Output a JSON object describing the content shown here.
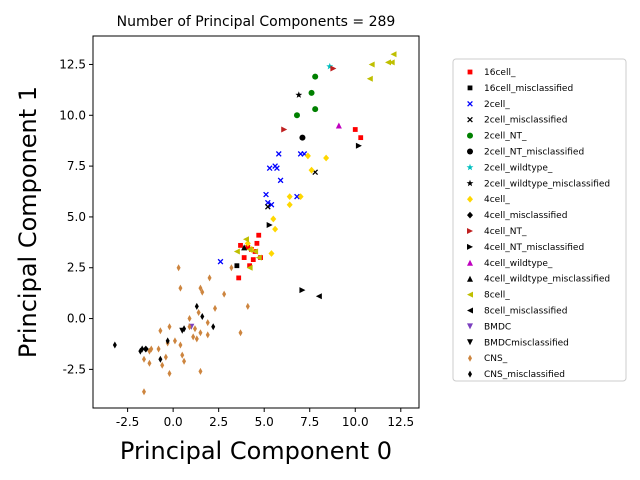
{
  "chart_data": {
    "type": "scatter",
    "title": "Number of Principal Components = 289",
    "xlabel": "Principal Component 0",
    "ylabel": "Principal Component 1",
    "xlim": [
      -4.4,
      13.5
    ],
    "ylim": [
      -4.4,
      13.9
    ],
    "xticks": [
      "-2.5",
      "0.0",
      "2.5",
      "5.0",
      "7.5",
      "10.0",
      "12.5"
    ],
    "xtick_values": [
      -2.5,
      0,
      2.5,
      5,
      7.5,
      10,
      12.5
    ],
    "yticks": [
      "-2.5",
      "0.0",
      "2.5",
      "5.0",
      "7.5",
      "10.0",
      "12.5"
    ],
    "ytick_values": [
      -2.5,
      0,
      2.5,
      5,
      7.5,
      10,
      12.5
    ],
    "legend_position": "right, outside plot",
    "series": [
      {
        "name": "16cell_",
        "color": "#ff0000",
        "marker": "square",
        "points": [
          [
            10.0,
            9.3
          ],
          [
            10.3,
            8.9
          ],
          [
            3.7,
            3.6
          ],
          [
            3.9,
            3.0
          ],
          [
            4.1,
            3.5
          ],
          [
            4.3,
            3.4
          ],
          [
            4.4,
            2.9
          ],
          [
            4.5,
            3.3
          ],
          [
            4.6,
            3.7
          ],
          [
            4.7,
            4.1
          ],
          [
            4.8,
            3.0
          ],
          [
            3.6,
            2.0
          ],
          [
            4.2,
            2.6
          ]
        ]
      },
      {
        "name": "16cell_misclassified",
        "color": "#000000",
        "marker": "square",
        "points": [
          [
            3.5,
            2.6
          ]
        ]
      },
      {
        "name": "2cell_",
        "color": "#0000ff",
        "marker": "x",
        "points": [
          [
            5.1,
            6.1
          ],
          [
            5.2,
            5.7
          ],
          [
            5.4,
            5.6
          ],
          [
            5.3,
            7.4
          ],
          [
            5.6,
            7.5
          ],
          [
            5.7,
            7.4
          ],
          [
            5.8,
            8.1
          ],
          [
            5.9,
            6.8
          ],
          [
            7.0,
            8.1
          ],
          [
            7.2,
            8.1
          ],
          [
            2.6,
            2.8
          ],
          [
            6.8,
            6.0
          ]
        ]
      },
      {
        "name": "2cell_misclassified",
        "color": "#000000",
        "marker": "x",
        "points": [
          [
            7.8,
            7.2
          ],
          [
            5.2,
            5.5
          ]
        ]
      },
      {
        "name": "2cell_NT_",
        "color": "#008000",
        "marker": "circle",
        "points": [
          [
            7.8,
            11.9
          ],
          [
            7.6,
            11.1
          ],
          [
            7.8,
            10.3
          ],
          [
            6.8,
            10.0
          ]
        ]
      },
      {
        "name": "2cell_NT_misclassified",
        "color": "#000000",
        "marker": "circle",
        "points": [
          [
            7.1,
            8.9
          ]
        ]
      },
      {
        "name": "2cell_wildtype_",
        "color": "#00bfbf",
        "marker": "star",
        "points": [
          [
            8.6,
            12.4
          ]
        ]
      },
      {
        "name": "2cell_wildtype_misclassified",
        "color": "#000000",
        "marker": "star",
        "points": [
          [
            6.9,
            11.0
          ]
        ]
      },
      {
        "name": "4cell_",
        "color": "#ffd700",
        "marker": "diamond",
        "points": [
          [
            8.4,
            7.9
          ],
          [
            7.4,
            8.0
          ],
          [
            7.6,
            7.3
          ],
          [
            6.4,
            6.0
          ],
          [
            6.4,
            5.6
          ],
          [
            7.0,
            6.0
          ],
          [
            5.5,
            4.9
          ],
          [
            5.6,
            4.4
          ],
          [
            5.4,
            3.2
          ],
          [
            4.1,
            3.7
          ],
          [
            4.3,
            3.4
          ]
        ]
      },
      {
        "name": "4cell_misclassified",
        "color": "#000000",
        "marker": "diamond",
        "points": [
          [
            -1.5,
            -1.5
          ]
        ]
      },
      {
        "name": "4cell_NT_",
        "color": "#bf2020",
        "marker": "triangle-right",
        "points": [
          [
            6.1,
            9.3
          ],
          [
            8.8,
            12.3
          ]
        ]
      },
      {
        "name": "4cell_NT_misclassified",
        "color": "#000000",
        "marker": "triangle-right",
        "points": [
          [
            10.2,
            8.5
          ],
          [
            7.1,
            1.4
          ],
          [
            5.3,
            4.6
          ]
        ]
      },
      {
        "name": "4cell_wildtype_",
        "color": "#bf00bf",
        "marker": "triangle-up",
        "points": [
          [
            9.1,
            9.5
          ]
        ]
      },
      {
        "name": "4cell_wildtype_misclassified",
        "color": "#000000",
        "marker": "triangle-up",
        "points": [
          [
            3.9,
            3.5
          ]
        ]
      },
      {
        "name": "8cell_",
        "color": "#bfbf00",
        "marker": "triangle-left",
        "points": [
          [
            12.1,
            13.0
          ],
          [
            12.0,
            12.6
          ],
          [
            11.8,
            12.6
          ],
          [
            10.9,
            12.5
          ],
          [
            10.8,
            11.8
          ],
          [
            4.2,
            3.4
          ],
          [
            4.0,
            3.9
          ],
          [
            4.5,
            3.3
          ],
          [
            4.7,
            3.0
          ],
          [
            3.5,
            3.3
          ],
          [
            4.2,
            2.5
          ]
        ]
      },
      {
        "name": "8cell_misclassified",
        "color": "#000000",
        "marker": "triangle-left",
        "points": [
          [
            8.0,
            1.1
          ]
        ]
      },
      {
        "name": "BMDC",
        "color": "#7b3fbf",
        "marker": "triangle-down",
        "points": [
          [
            1.0,
            -0.4
          ]
        ]
      },
      {
        "name": "BMDCmisclassified",
        "color": "#000000",
        "marker": "triangle-down",
        "points": [
          [
            0.5,
            -0.6
          ]
        ]
      },
      {
        "name": "CNS_",
        "color": "#cd853f",
        "marker": "thin-diamond",
        "points": [
          [
            0.3,
            2.5
          ],
          [
            0.4,
            1.5
          ],
          [
            1.5,
            1.5
          ],
          [
            1.6,
            1.3
          ],
          [
            2.0,
            2.0
          ],
          [
            2.8,
            1.2
          ],
          [
            3.2,
            2.5
          ],
          [
            4.1,
            0.6
          ],
          [
            3.7,
            -0.7
          ],
          [
            2.3,
            0.5
          ],
          [
            1.4,
            0.3
          ],
          [
            1.9,
            -0.2
          ],
          [
            1.2,
            -0.5
          ],
          [
            0.9,
            -0.4
          ],
          [
            1.1,
            -0.9
          ],
          [
            1.3,
            -1.0
          ],
          [
            1.5,
            -0.7
          ],
          [
            1.9,
            -0.8
          ],
          [
            0.5,
            -1.8
          ],
          [
            0.4,
            -1.3
          ],
          [
            0.1,
            -1.1
          ],
          [
            -0.2,
            -0.4
          ],
          [
            -0.3,
            -1.2
          ],
          [
            -0.4,
            -1.9
          ],
          [
            -0.8,
            -1.5
          ],
          [
            -1.2,
            -1.5
          ],
          [
            -1.3,
            -1.6
          ],
          [
            -1.6,
            -2.0
          ],
          [
            -0.6,
            -2.3
          ],
          [
            -0.2,
            -2.7
          ],
          [
            -1.3,
            -2.2
          ],
          [
            0.6,
            -2.1
          ],
          [
            0.9,
            0.0
          ],
          [
            1.5,
            -2.6
          ],
          [
            -1.6,
            -3.6
          ],
          [
            -0.7,
            -0.6
          ]
        ]
      },
      {
        "name": "CNS_misclassified",
        "color": "#000000",
        "marker": "thin-diamond",
        "points": [
          [
            -3.2,
            -1.3
          ],
          [
            -1.7,
            -1.5
          ],
          [
            -0.7,
            -2.0
          ],
          [
            -0.3,
            -1.1
          ],
          [
            1.3,
            0.6
          ],
          [
            1.6,
            0.1
          ],
          [
            2.2,
            -0.4
          ],
          [
            0.6,
            -0.5
          ],
          [
            -1.8,
            -1.6
          ]
        ]
      }
    ]
  }
}
